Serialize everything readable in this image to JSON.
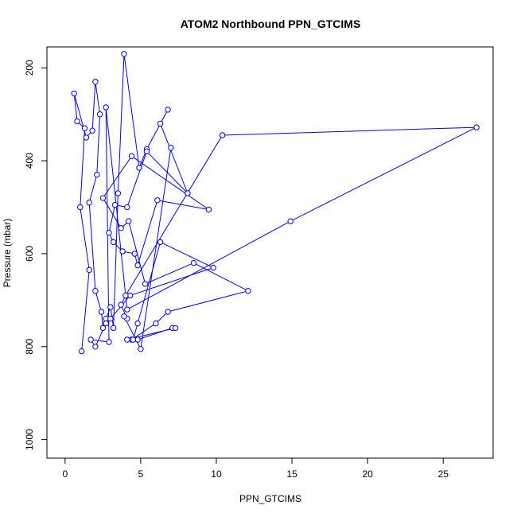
{
  "chart_data": {
    "type": "scatter",
    "title": "ATOM2 Northbound PPN_GTCIMS",
    "xlabel": "PPN_GTCIMS",
    "ylabel": "Pressure (mbar)",
    "xlim": [
      -1.2,
      28.3
    ],
    "ylim": [
      1040,
      155
    ],
    "y_reversed": true,
    "x_ticks": [
      0,
      5,
      10,
      15,
      20,
      25
    ],
    "y_ticks": [
      200,
      400,
      600,
      800,
      1000
    ],
    "color": "#0000ff",
    "grid": false,
    "connected": true,
    "series": [
      {
        "points": [
          [
            1.1,
            810
          ],
          [
            1.6,
            635
          ],
          [
            1.0,
            500
          ],
          [
            1.3,
            330
          ],
          [
            0.8,
            315
          ],
          [
            0.6,
            255
          ],
          [
            1.4,
            350
          ],
          [
            1.8,
            335
          ],
          [
            2.0,
            230
          ],
          [
            2.3,
            300
          ],
          [
            2.1,
            430
          ],
          [
            1.6,
            490
          ],
          [
            2.0,
            680
          ],
          [
            2.4,
            725
          ],
          [
            2.5,
            760
          ],
          [
            2.7,
            740
          ],
          [
            3.0,
            715
          ],
          [
            3.2,
            760
          ],
          [
            3.5,
            470
          ],
          [
            3.9,
            170
          ],
          [
            4.9,
            415
          ],
          [
            5.4,
            375
          ],
          [
            6.8,
            290
          ],
          [
            6.3,
            320
          ],
          [
            8.1,
            470
          ],
          [
            5.4,
            380
          ],
          [
            4.1,
            500
          ],
          [
            3.3,
            495
          ],
          [
            2.9,
            555
          ],
          [
            3.2,
            575
          ],
          [
            3.8,
            595
          ],
          [
            4.6,
            600
          ],
          [
            4.8,
            625
          ],
          [
            6.1,
            485
          ],
          [
            9.5,
            505
          ],
          [
            4.4,
            390
          ],
          [
            2.5,
            480
          ],
          [
            3.7,
            545
          ],
          [
            4.2,
            530
          ],
          [
            5.3,
            665
          ],
          [
            8.5,
            620
          ],
          [
            12.1,
            680
          ],
          [
            6.8,
            725
          ],
          [
            6.0,
            750
          ],
          [
            4.4,
            785
          ],
          [
            4.8,
            785
          ],
          [
            7.1,
            760
          ],
          [
            7.3,
            760
          ],
          [
            4.1,
            785
          ],
          [
            4.5,
            785
          ],
          [
            4.8,
            750
          ],
          [
            6.3,
            575
          ],
          [
            9.8,
            630
          ],
          [
            4.3,
            690
          ],
          [
            3.0,
            740
          ],
          [
            2.7,
            750
          ],
          [
            2.0,
            800
          ],
          [
            1.7,
            785
          ],
          [
            2.9,
            790
          ],
          [
            2.7,
            285
          ],
          [
            4.1,
            720
          ],
          [
            14.9,
            530
          ],
          [
            27.2,
            328
          ],
          [
            10.4,
            345
          ],
          [
            4.0,
            690
          ],
          [
            3.7,
            710
          ],
          [
            4.1,
            740
          ],
          [
            3.9,
            735
          ],
          [
            5.0,
            805
          ],
          [
            7.0,
            372
          ]
        ]
      }
    ]
  }
}
